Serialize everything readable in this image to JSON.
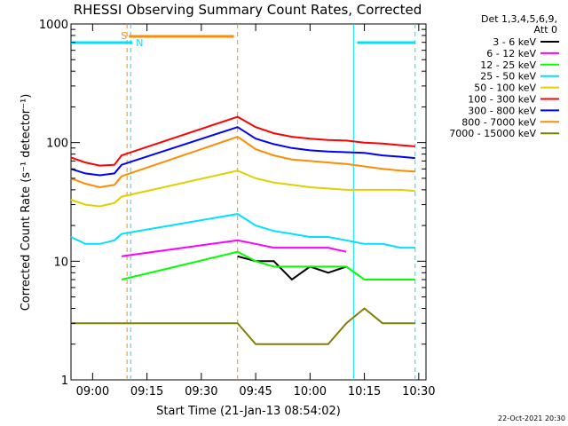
{
  "chart_data": {
    "type": "line",
    "title": "RHESSI Observing Summary Count Rates, Corrected",
    "xlabel": "Start Time (21-Jan-13 08:54:02)",
    "ylabel": "Corrected Count Rate (s⁻¹ detector⁻¹)",
    "xlim": [
      "08:54:02",
      "10:32:00"
    ],
    "ylim": [
      1,
      1000
    ],
    "yscale": "log",
    "x_ticks": [
      "09:00",
      "09:15",
      "09:30",
      "09:45",
      "10:00",
      "10:15",
      "10:30"
    ],
    "y_ticks": [
      "1",
      "10",
      "100",
      "1000"
    ],
    "legend_header": [
      "Det 1,3,4,5,6,9,",
      "Att 0"
    ],
    "legend_position": "right",
    "footer_date": "22-Oct-2021 20:30",
    "flag_labels": {
      "saa": "S",
      "night": "N"
    },
    "saa_bar": {
      "start": "09:10:00",
      "end": "09:39:00",
      "color": "#ff8c00"
    },
    "night_bars": [
      {
        "start": "08:54:02",
        "end": "09:11:00",
        "color": "#00e0ff"
      },
      {
        "start": "10:13:00",
        "end": "10:29:00",
        "color": "#00e0ff"
      }
    ],
    "vertical_markers": [
      {
        "time": "09:09:30",
        "color": "#ff8c00",
        "style": "dashed"
      },
      {
        "time": "09:10:30",
        "color": "#00e0ff",
        "style": "dashed"
      },
      {
        "time": "09:40:00",
        "color": "#ff8c00",
        "style": "dashed"
      },
      {
        "time": "10:12:00",
        "color": "#00e0ff",
        "style": "solid"
      },
      {
        "time": "10:29:00",
        "color": "#00e0ff",
        "style": "dashed"
      }
    ],
    "x": [
      "08:54",
      "08:58",
      "09:02",
      "09:06",
      "09:08",
      "09:40",
      "09:45",
      "09:50",
      "09:55",
      "10:00",
      "10:05",
      "10:10",
      "10:15",
      "10:20",
      "10:25",
      "10:29"
    ],
    "series": [
      {
        "name": "3 - 6 keV",
        "color": "#000000",
        "values": [
          null,
          null,
          null,
          null,
          null,
          11,
          10,
          10,
          7,
          9,
          8,
          9,
          null,
          null,
          null,
          null
        ]
      },
      {
        "name": "6 - 12 keV",
        "color": "#ff00ff",
        "values": [
          null,
          null,
          null,
          null,
          11,
          15,
          14,
          13,
          13,
          13,
          13,
          12,
          null,
          null,
          null,
          null
        ]
      },
      {
        "name": "12 - 25 keV",
        "color": "#00ff00",
        "values": [
          null,
          null,
          null,
          null,
          7,
          12,
          10,
          9,
          9,
          9,
          9,
          9,
          7,
          7,
          7,
          7
        ]
      },
      {
        "name": "25 - 50 keV",
        "color": "#00e0ff",
        "values": [
          16,
          14,
          14,
          15,
          17,
          25,
          20,
          18,
          17,
          16,
          16,
          15,
          14,
          14,
          13,
          13
        ]
      },
      {
        "name": "50 - 100 keV",
        "color": "#e0d000",
        "values": [
          33,
          30,
          29,
          31,
          35,
          58,
          50,
          46,
          44,
          42,
          41,
          40,
          40,
          40,
          40,
          39
        ]
      },
      {
        "name": "100 - 300 keV",
        "color": "#ff0000",
        "values": [
          75,
          68,
          64,
          65,
          78,
          165,
          135,
          120,
          112,
          108,
          105,
          104,
          100,
          98,
          95,
          93
        ]
      },
      {
        "name": "300 - 800 keV",
        "color": "#0000ff",
        "values": [
          60,
          55,
          53,
          55,
          65,
          135,
          108,
          97,
          90,
          86,
          84,
          83,
          82,
          78,
          76,
          74
        ]
      },
      {
        "name": "800 - 7000 keV",
        "color": "#ff8c00",
        "values": [
          50,
          45,
          42,
          44,
          52,
          112,
          88,
          78,
          72,
          70,
          68,
          66,
          63,
          60,
          58,
          57
        ]
      },
      {
        "name": "7000 - 15000 keV",
        "color": "#808000",
        "values": [
          3,
          3,
          3,
          3,
          3,
          3,
          2,
          2,
          2,
          2,
          2,
          3,
          4,
          3,
          3,
          3
        ]
      }
    ]
  }
}
